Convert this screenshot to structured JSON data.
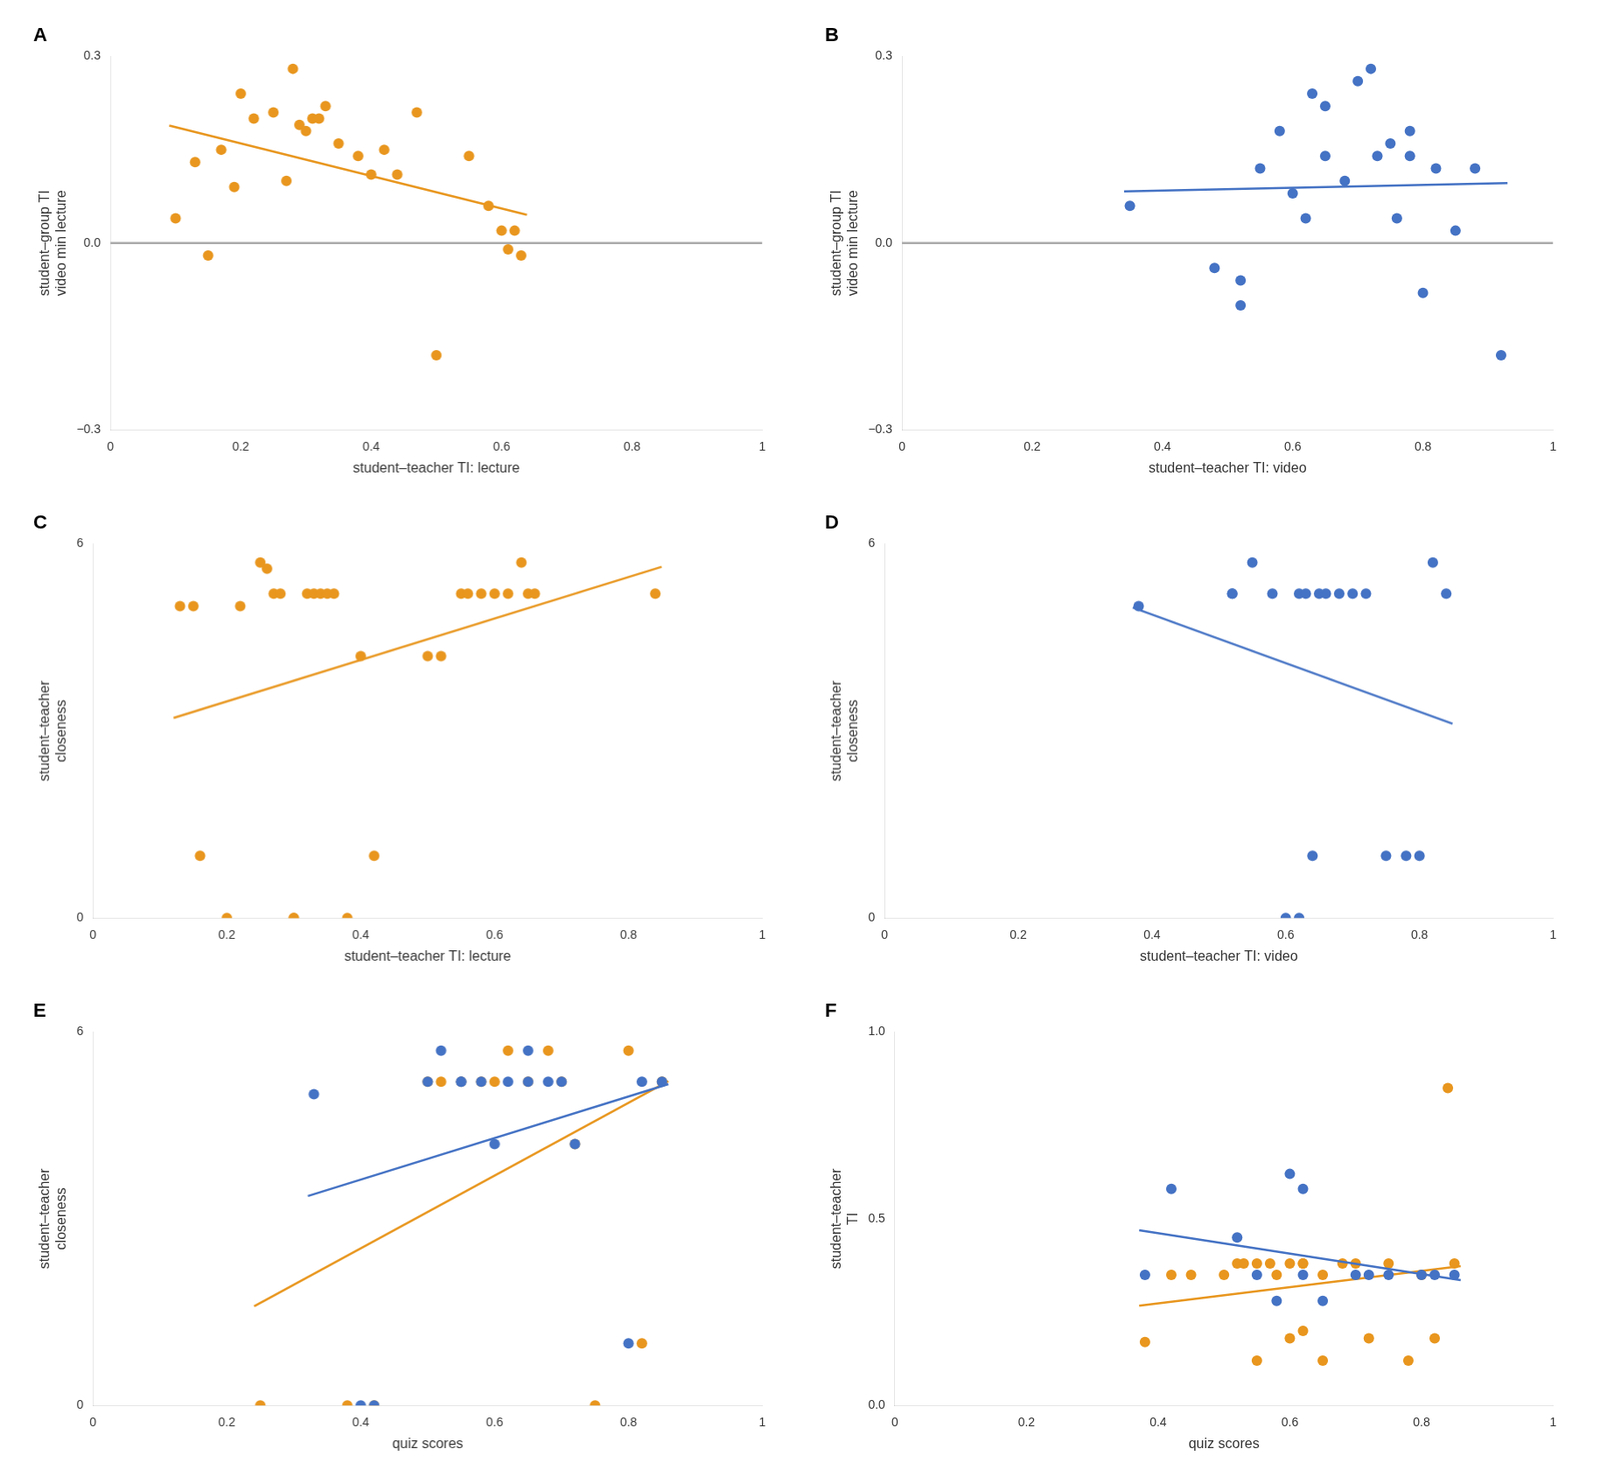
{
  "chart_data": [
    {
      "type": "scatter",
      "title": "A",
      "x_label": "student–teacher TI: lecture",
      "y_label": "student–group TI\nvideo min lecture",
      "xlim": [
        0,
        1
      ],
      "ylim": [
        -0.3,
        0.3
      ],
      "xticks": [
        0,
        0.2,
        0.4,
        0.6,
        0.8,
        1
      ],
      "yticks": [
        {
          "value": -0.3,
          "label": "−0.3"
        },
        {
          "value": 0,
          "label": "0.0"
        },
        0.3
      ],
      "grid": false,
      "series": [
        {
          "type": "line",
          "color": "#aaaaaa",
          "x": [
            0,
            1
          ],
          "y": [
            0,
            0
          ]
        },
        {
          "type": "line",
          "color": "#E8961E",
          "x": [
            0.0903,
            0.6388
          ],
          "y": [
            0.1889,
            0.0455
          ]
        },
        {
          "type": "scatter",
          "color": "#E8961E",
          "x": [
            0.1,
            0.13,
            0.15,
            0.17,
            0.19,
            0.2,
            0.22,
            0.25,
            0.27,
            0.28,
            0.29,
            0.3,
            0.31,
            0.32,
            0.33,
            0.35,
            0.38,
            0.4,
            0.42,
            0.44,
            0.47,
            0.5,
            0.55,
            0.58,
            0.6,
            0.61,
            0.62,
            0.63
          ],
          "y": [
            0.04,
            0.13,
            -0.02,
            0.15,
            0.09,
            0.24,
            0.2,
            0.21,
            0.1,
            0.28,
            0.19,
            0.18,
            0.2,
            0.2,
            0.22,
            0.16,
            0.14,
            0.11,
            0.15,
            0.11,
            0.21,
            -0.18,
            0.14,
            0.06,
            0.02,
            -0.01,
            0.02,
            -0.02
          ]
        }
      ]
    },
    {
      "type": "scatter",
      "title": "B",
      "x_label": "student–teacher TI: video",
      "y_label": "student–group TI\nvideo min lecture",
      "xlim": [
        0,
        1
      ],
      "ylim": [
        -0.3,
        0.3
      ],
      "xticks": [
        0,
        0.2,
        0.4,
        0.6,
        0.8,
        1
      ],
      "yticks": [
        {
          "value": -0.3,
          "label": "−0.3"
        },
        {
          "value": 0,
          "label": "0.0"
        },
        0.3
      ],
      "grid": false,
      "series": [
        {
          "type": "line",
          "color": "#aaaaaa",
          "x": [
            0,
            1
          ],
          "y": [
            0,
            0
          ]
        },
        {
          "type": "line",
          "color": "#4472C4",
          "x": [
            0.3411,
            0.9298
          ],
          "y": [
            0.0832,
            0.0964
          ]
        },
        {
          "type": "scatter",
          "color": "#4472C4",
          "x": [
            0.35,
            0.48,
            0.52,
            0.52,
            0.55,
            0.58,
            0.6,
            0.62,
            0.63,
            0.65,
            0.65,
            0.68,
            0.7,
            0.72,
            0.73,
            0.75,
            0.76,
            0.78,
            0.78,
            0.8,
            0.82,
            0.85,
            0.88,
            0.92
          ],
          "y": [
            0.06,
            -0.04,
            -0.06,
            -0.1,
            0.12,
            0.18,
            0.08,
            0.04,
            0.24,
            0.22,
            0.14,
            0.1,
            0.26,
            0.28,
            0.14,
            0.16,
            0.04,
            0.14,
            0.18,
            -0.08,
            0.12,
            0.02,
            0.12,
            -0.18
          ]
        }
      ]
    },
    {
      "type": "scatter",
      "title": "C",
      "x_label": "student–teacher TI: lecture",
      "y_label": "student–teacher\ncloseness",
      "xlim": [
        0,
        1
      ],
      "ylim": [
        0,
        6
      ],
      "xticks": [
        0,
        0.2,
        0.4,
        0.6,
        0.8,
        1
      ],
      "yticks": [
        0,
        6
      ],
      "grid": false,
      "series": [
        {
          "type": "line",
          "color": "#E8961E",
          "x": [
            0.1204,
            0.8495
          ],
          "y": [
            3.2092,
            5.6307
          ]
        },
        {
          "type": "scatter",
          "color": "#E8961E",
          "x": [
            0.13,
            0.15,
            0.16,
            0.2,
            0.22,
            0.25,
            0.26,
            0.27,
            0.28,
            0.3,
            0.3,
            0.32,
            0.33,
            0.34,
            0.35,
            0.36,
            0.38,
            0.4,
            0.42,
            0.5,
            0.52,
            0.55,
            0.56,
            0.58,
            0.6,
            0.62,
            0.64,
            0.65,
            0.66,
            0.84
          ],
          "y": [
            5.0,
            5.0,
            1.0,
            0.0,
            5.0,
            5.7,
            5.6,
            5.2,
            5.2,
            0.0,
            0.0,
            5.2,
            5.2,
            5.2,
            5.2,
            5.2,
            0.0,
            4.2,
            1.0,
            4.2,
            4.2,
            5.2,
            5.2,
            5.2,
            5.2,
            5.2,
            5.7,
            5.2,
            5.2,
            5.2
          ]
        }
      ]
    },
    {
      "type": "scatter",
      "title": "D",
      "x_label": "student–teacher TI: video",
      "y_label": "student–teacher\ncloseness",
      "xlim": [
        0,
        1
      ],
      "ylim": [
        0,
        6
      ],
      "xticks": [
        0,
        0.2,
        0.4,
        0.6,
        0.8,
        1
      ],
      "yticks": [
        0,
        6
      ],
      "grid": false,
      "series": [
        {
          "type": "line",
          "color": "#4472C4",
          "x": [
            0.3712,
            0.8495
          ],
          "y": [
            4.9773,
            3.1147
          ]
        },
        {
          "type": "scatter",
          "color": "#4472C4",
          "x": [
            0.38,
            0.52,
            0.52,
            0.55,
            0.58,
            0.6,
            0.62,
            0.62,
            0.63,
            0.64,
            0.65,
            0.66,
            0.68,
            0.7,
            0.72,
            0.75,
            0.78,
            0.8,
            0.82,
            0.84
          ],
          "y": [
            5.0,
            5.2,
            5.2,
            5.7,
            5.2,
            0.0,
            0.0,
            5.2,
            5.2,
            1.0,
            5.2,
            5.2,
            5.2,
            5.2,
            5.2,
            1.0,
            1.0,
            1.0,
            5.7,
            5.2
          ]
        }
      ]
    },
    {
      "type": "scatter",
      "title": "E",
      "x_label": "quiz scores",
      "y_label": "student–teacher\ncloseness",
      "xlim": [
        0,
        1
      ],
      "ylim": [
        0,
        6
      ],
      "xticks": [
        0,
        0.2,
        0.4,
        0.6,
        0.8,
        1
      ],
      "yticks": [
        0,
        6
      ],
      "grid": false,
      "series": [
        {
          "type": "scatter",
          "color": "#E8961E",
          "x": [
            0.25,
            0.38,
            0.42,
            0.5,
            0.52,
            0.55,
            0.58,
            0.6,
            0.62,
            0.65,
            0.68,
            0.7,
            0.72,
            0.75,
            0.8,
            0.82,
            0.85
          ],
          "y": [
            0.0,
            0.0,
            0.0,
            5.2,
            5.2,
            5.2,
            5.2,
            5.2,
            5.7,
            5.2,
            5.7,
            5.2,
            4.2,
            0.0,
            5.7,
            1.0,
            5.2
          ]
        },
        {
          "type": "line",
          "color": "#E8961E",
          "x": [
            0.2408,
            0.8595
          ],
          "y": [
            1.5934,
            5.2108
          ]
        },
        {
          "type": "line",
          "color": "#4472C4",
          "x": [
            0.3211,
            0.8595
          ],
          "y": [
            3.3658,
            5.162
          ]
        },
        {
          "type": "scatter",
          "color": "#4472C4",
          "x": [
            0.33,
            0.4,
            0.42,
            0.5,
            0.52,
            0.55,
            0.55,
            0.58,
            0.6,
            0.62,
            0.65,
            0.65,
            0.68,
            0.7,
            0.72,
            0.8,
            0.82,
            0.85
          ],
          "y": [
            5.0,
            0.0,
            0.0,
            5.2,
            5.7,
            5.2,
            5.2,
            5.2,
            4.2,
            5.2,
            5.2,
            5.7,
            5.2,
            5.2,
            4.2,
            1.0,
            5.2,
            5.2
          ]
        }
      ]
    },
    {
      "type": "scatter",
      "title": "F",
      "x_label": "quiz scores",
      "y_label": "student–teacher\nTI",
      "xlim": [
        0,
        1
      ],
      "ylim": [
        0,
        1
      ],
      "xticks": [
        0,
        0.2,
        0.4,
        0.6,
        0.8,
        1
      ],
      "yticks": [
        {
          "value": 0,
          "label": "0.0"
        },
        0.5,
        {
          "value": 1,
          "label": "1.0"
        }
      ],
      "grid": false,
      "series": [
        {
          "type": "scatter",
          "color": "#E8961E",
          "x": [
            0.38,
            0.42,
            0.45,
            0.5,
            0.52,
            0.53,
            0.55,
            0.55,
            0.57,
            0.58,
            0.6,
            0.6,
            0.62,
            0.62,
            0.62,
            0.65,
            0.65,
            0.68,
            0.7,
            0.72,
            0.75,
            0.78,
            0.8,
            0.82,
            0.84,
            0.85
          ],
          "y": [
            0.17,
            0.35,
            0.35,
            0.35,
            0.38,
            0.38,
            0.12,
            0.38,
            0.38,
            0.35,
            0.38,
            0.18,
            0.2,
            0.38,
            0.38,
            0.12,
            0.35,
            0.38,
            0.38,
            0.18,
            0.38,
            0.12,
            0.35,
            0.18,
            0.85,
            0.38
          ]
        },
        {
          "type": "line",
          "color": "#E8961E",
          "x": [
            0.3712,
            0.8595
          ],
          "y": [
            0.2669,
            0.3734
          ]
        },
        {
          "type": "line",
          "color": "#4472C4",
          "x": [
            0.3712,
            0.8595
          ],
          "y": [
            0.4692,
            0.3355
          ]
        },
        {
          "type": "scatter",
          "color": "#4472C4",
          "x": [
            0.38,
            0.42,
            0.52,
            0.55,
            0.58,
            0.6,
            0.62,
            0.62,
            0.65,
            0.7,
            0.72,
            0.75,
            0.8,
            0.82,
            0.85
          ],
          "y": [
            0.35,
            0.58,
            0.45,
            0.35,
            0.28,
            0.62,
            0.35,
            0.58,
            0.28,
            0.35,
            0.35,
            0.35,
            0.35,
            0.35,
            0.35
          ]
        }
      ]
    }
  ]
}
